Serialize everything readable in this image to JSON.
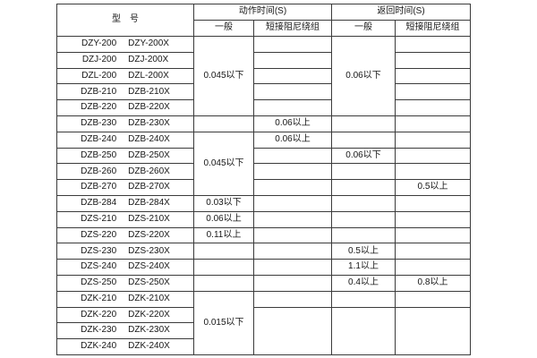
{
  "table": {
    "header": {
      "model": "型　号",
      "action_time": "动作时间(S)",
      "return_time": "返回时间(S)",
      "general": "一般",
      "damping": "短接阻尼绕组"
    },
    "rows": [
      {
        "model": [
          "DZY-200",
          "DZY-200X"
        ],
        "cells": [
          {
            "col": "ag",
            "span": 5,
            "text": "0.045以下"
          },
          {
            "col": "ad",
            "span": 1,
            "text": ""
          },
          {
            "col": "rg",
            "span": 5,
            "text": "0.06以下"
          },
          {
            "col": "rd",
            "span": 1,
            "text": ""
          }
        ]
      },
      {
        "model": [
          "DZJ-200",
          "DZJ-200X"
        ],
        "cells": [
          {
            "col": "ad",
            "span": 1,
            "text": ""
          },
          {
            "col": "rd",
            "span": 1,
            "text": ""
          }
        ]
      },
      {
        "model": [
          "DZL-200",
          "DZL-200X"
        ],
        "cells": [
          {
            "col": "ad",
            "span": 1,
            "text": ""
          },
          {
            "col": "rd",
            "span": 1,
            "text": ""
          }
        ]
      },
      {
        "model": [
          "DZB-210",
          "DZB-210X"
        ],
        "cells": [
          {
            "col": "ad",
            "span": 1,
            "text": ""
          },
          {
            "col": "rd",
            "span": 1,
            "text": ""
          }
        ]
      },
      {
        "model": [
          "DZB-220",
          "DZB-220X"
        ],
        "cells": [
          {
            "col": "ad",
            "span": 1,
            "text": ""
          },
          {
            "col": "rd",
            "span": 1,
            "text": ""
          }
        ]
      },
      {
        "model": [
          "DZB-230",
          "DZB-230X"
        ],
        "cells": [
          {
            "col": "ag",
            "span": 1,
            "text": ""
          },
          {
            "col": "ad",
            "span": 1,
            "text": "0.06以上"
          },
          {
            "col": "rg",
            "span": 1,
            "text": ""
          },
          {
            "col": "rd",
            "span": 1,
            "text": ""
          }
        ]
      },
      {
        "model": [
          "DZB-240",
          "DZB-240X"
        ],
        "cells": [
          {
            "col": "ag",
            "span": 4,
            "text": "0.045以下"
          },
          {
            "col": "ad",
            "span": 1,
            "text": "0.06以上"
          },
          {
            "col": "rg",
            "span": 1,
            "text": ""
          },
          {
            "col": "rd",
            "span": 1,
            "text": ""
          }
        ]
      },
      {
        "model": [
          "DZB-250",
          "DZB-250X"
        ],
        "cells": [
          {
            "col": "ad",
            "span": 1,
            "text": ""
          },
          {
            "col": "rg",
            "span": 1,
            "text": "0.06以下"
          },
          {
            "col": "rd",
            "span": 1,
            "text": ""
          }
        ]
      },
      {
        "model": [
          "DZB-260",
          "DZB-260X"
        ],
        "cells": [
          {
            "col": "ad",
            "span": 1,
            "text": ""
          },
          {
            "col": "rg",
            "span": 1,
            "text": ""
          },
          {
            "col": "rd",
            "span": 1,
            "text": ""
          }
        ]
      },
      {
        "model": [
          "DZB-270",
          "DZB-270X"
        ],
        "cells": [
          {
            "col": "ad",
            "span": 1,
            "text": ""
          },
          {
            "col": "rg",
            "span": 1,
            "text": ""
          },
          {
            "col": "rd",
            "span": 1,
            "text": "0.5以上"
          }
        ]
      },
      {
        "model": [
          "DZB-284",
          "DZB-284X"
        ],
        "cells": [
          {
            "col": "ag",
            "span": 1,
            "text": "0.03以下"
          },
          {
            "col": "ad",
            "span": 1,
            "text": ""
          },
          {
            "col": "rg",
            "span": 1,
            "text": ""
          },
          {
            "col": "rd",
            "span": 1,
            "text": ""
          }
        ]
      },
      {
        "model": [
          "DZS-210",
          "DZS-210X"
        ],
        "cells": [
          {
            "col": "ag",
            "span": 1,
            "text": "0.06以上"
          },
          {
            "col": "ad",
            "span": 1,
            "text": ""
          },
          {
            "col": "rg",
            "span": 1,
            "text": ""
          },
          {
            "col": "rd",
            "span": 1,
            "text": ""
          }
        ]
      },
      {
        "model": [
          "DZS-220",
          "DZS-220X"
        ],
        "cells": [
          {
            "col": "ag",
            "span": 1,
            "text": "0.11以上"
          },
          {
            "col": "ad",
            "span": 1,
            "text": ""
          },
          {
            "col": "rg",
            "span": 1,
            "text": ""
          },
          {
            "col": "rd",
            "span": 1,
            "text": ""
          }
        ]
      },
      {
        "model": [
          "DZS-230",
          "DZS-230X"
        ],
        "cells": [
          {
            "col": "ag",
            "span": 1,
            "text": ""
          },
          {
            "col": "ad",
            "span": 1,
            "text": ""
          },
          {
            "col": "rg",
            "span": 1,
            "text": "0.5以上"
          },
          {
            "col": "rd",
            "span": 1,
            "text": ""
          }
        ]
      },
      {
        "model": [
          "DZS-240",
          "DZS-240X"
        ],
        "cells": [
          {
            "col": "ag",
            "span": 1,
            "text": ""
          },
          {
            "col": "ad",
            "span": 1,
            "text": ""
          },
          {
            "col": "rg",
            "span": 1,
            "text": "1.1以上"
          },
          {
            "col": "rd",
            "span": 1,
            "text": ""
          }
        ]
      },
      {
        "model": [
          "DZS-250",
          "DZS-250X"
        ],
        "cells": [
          {
            "col": "ag",
            "span": 1,
            "text": ""
          },
          {
            "col": "ad",
            "span": 1,
            "text": ""
          },
          {
            "col": "rg",
            "span": 1,
            "text": "0.4以上"
          },
          {
            "col": "rd",
            "span": 1,
            "text": "0.8以上"
          }
        ]
      },
      {
        "model": [
          "DZK-210",
          "DZK-210X"
        ],
        "cells": [
          {
            "col": "ag",
            "span": 4,
            "text": "0.015以下"
          },
          {
            "col": "ad",
            "span": 1,
            "text": ""
          },
          {
            "col": "rg",
            "span": 1,
            "text": ""
          },
          {
            "col": "rd",
            "span": 1,
            "text": ""
          }
        ]
      },
      {
        "model": [
          "DZK-220",
          "DZK-220X"
        ],
        "cells": [
          {
            "col": "ad",
            "span": 3,
            "text": ""
          },
          {
            "col": "rg",
            "span": 3,
            "text": ""
          },
          {
            "col": "rd",
            "span": 3,
            "text": ""
          }
        ]
      },
      {
        "model": [
          "DZK-230",
          "DZK-230X"
        ],
        "cells": []
      },
      {
        "model": [
          "DZK-240",
          "DZK-240X"
        ],
        "cells": []
      }
    ]
  }
}
